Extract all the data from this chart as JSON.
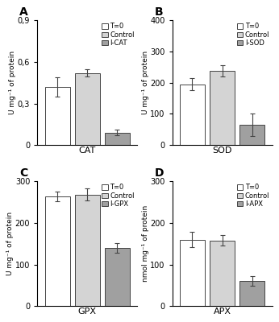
{
  "panels": [
    {
      "label": "A",
      "xlabel": "CAT",
      "ylabel": "U mg⁻¹ of protein",
      "ylim": [
        0,
        0.9
      ],
      "yticks": [
        0,
        0.3,
        0.6,
        0.9
      ],
      "ytick_labels": [
        "0",
        "0,3",
        "0,6",
        "0,9"
      ],
      "values": [
        0.42,
        0.52,
        0.09
      ],
      "errors": [
        0.07,
        0.025,
        0.02
      ],
      "legend_labels": [
        "T=0",
        "Control",
        "I-CAT"
      ]
    },
    {
      "label": "B",
      "xlabel": "SOD",
      "ylabel": "U mg⁻¹ of protein",
      "ylim": [
        0,
        400
      ],
      "yticks": [
        0,
        100,
        200,
        300,
        400
      ],
      "ytick_labels": [
        "0",
        "100",
        "200",
        "300",
        "400"
      ],
      "values": [
        195,
        238,
        65
      ],
      "errors": [
        20,
        18,
        35
      ],
      "legend_labels": [
        "T=0",
        "Control",
        "I-SOD"
      ]
    },
    {
      "label": "C",
      "xlabel": "GPX",
      "ylabel": "U mg⁻¹ of protein",
      "ylim": [
        0,
        300
      ],
      "yticks": [
        0,
        100,
        200,
        300
      ],
      "ytick_labels": [
        "0",
        "100",
        "200",
        "300"
      ],
      "values": [
        263,
        268,
        140
      ],
      "errors": [
        12,
        15,
        12
      ],
      "legend_labels": [
        "T=0",
        "Control",
        "I-GPX"
      ]
    },
    {
      "label": "D",
      "xlabel": "APX",
      "ylabel": "nmol mg⁻¹ of protein",
      "ylim": [
        0,
        300
      ],
      "yticks": [
        0,
        100,
        200,
        300
      ],
      "ytick_labels": [
        "0",
        "100",
        "200",
        "300"
      ],
      "values": [
        160,
        158,
        60
      ],
      "errors": [
        18,
        12,
        12
      ],
      "legend_labels": [
        "T=0",
        "Control",
        "I-APX"
      ]
    }
  ],
  "bar_colors": [
    "#ffffff",
    "#d4d4d4",
    "#a0a0a0"
  ],
  "bar_edgecolor": "#444444",
  "bar_width": 0.5,
  "background_color": "#ffffff",
  "fontsize": 7,
  "label_fontsize": 10
}
